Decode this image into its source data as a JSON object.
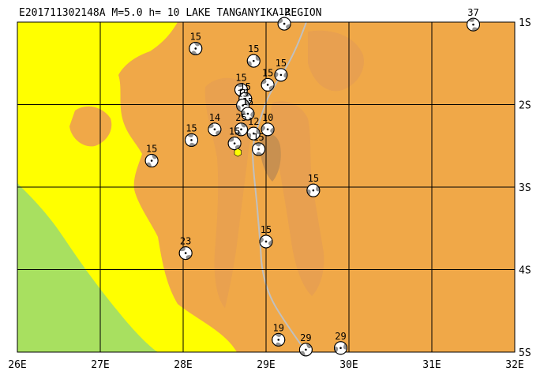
{
  "title": "E201711302148A  M=5.0  h= 10 LAKE TANGANYIKA REGION",
  "map": {
    "lon_range": [
      26,
      32
    ],
    "lat_range": [
      -1,
      -5
    ],
    "lon_ticks": [
      "26E",
      "27E",
      "28E",
      "29E",
      "30E",
      "31E",
      "32E"
    ],
    "lat_ticks": [
      "1S",
      "2S",
      "3S",
      "4S",
      "5S"
    ]
  },
  "colors": {
    "lowland": "#ffff00",
    "upland": "#f0a848",
    "highland": "#e8a050",
    "lake": "#c89050",
    "grid": "#000000",
    "border": "#c0c0c0",
    "green_area": "#a8e060",
    "epicenter": "#ffff00"
  },
  "main_event": {
    "lon": 28.66,
    "lat": -2.58,
    "symbol": "yellow-hexagon"
  },
  "mechanisms": [
    {
      "depth": "12",
      "lon": 29.22,
      "lat": -1.02
    },
    {
      "depth": "37",
      "lon": 31.5,
      "lat": -1.03
    },
    {
      "depth": "15",
      "lon": 28.15,
      "lat": -1.32
    },
    {
      "depth": "15",
      "lon": 28.85,
      "lat": -1.47
    },
    {
      "depth": "15",
      "lon": 29.18,
      "lat": -1.64
    },
    {
      "depth": "15",
      "lon": 29.02,
      "lat": -1.76
    },
    {
      "depth": "15",
      "lon": 28.7,
      "lat": -1.82
    },
    {
      "depth": "15",
      "lon": 28.75,
      "lat": -1.93
    },
    {
      "depth": "15",
      "lon": 28.72,
      "lat": -2.01
    },
    {
      "depth": "15",
      "lon": 28.78,
      "lat": -2.11
    },
    {
      "depth": "14",
      "lon": 28.38,
      "lat": -2.3
    },
    {
      "depth": "15",
      "lon": 28.1,
      "lat": -2.43
    },
    {
      "depth": "25",
      "lon": 28.7,
      "lat": -2.3
    },
    {
      "depth": "12",
      "lon": 28.85,
      "lat": -2.35
    },
    {
      "depth": "10",
      "lon": 29.02,
      "lat": -2.3
    },
    {
      "depth": "15",
      "lon": 28.62,
      "lat": -2.47
    },
    {
      "depth": "15",
      "lon": 28.91,
      "lat": -2.54
    },
    {
      "depth": "15",
      "lon": 27.62,
      "lat": -2.68
    },
    {
      "depth": "15",
      "lon": 29.57,
      "lat": -3.04
    },
    {
      "depth": "15",
      "lon": 29.0,
      "lat": -3.66
    },
    {
      "depth": "23",
      "lon": 28.03,
      "lat": -3.8
    },
    {
      "depth": "19",
      "lon": 29.15,
      "lat": -4.85
    },
    {
      "depth": "29",
      "lon": 29.48,
      "lat": -4.97
    },
    {
      "depth": "29",
      "lon": 29.9,
      "lat": -4.95
    }
  ]
}
